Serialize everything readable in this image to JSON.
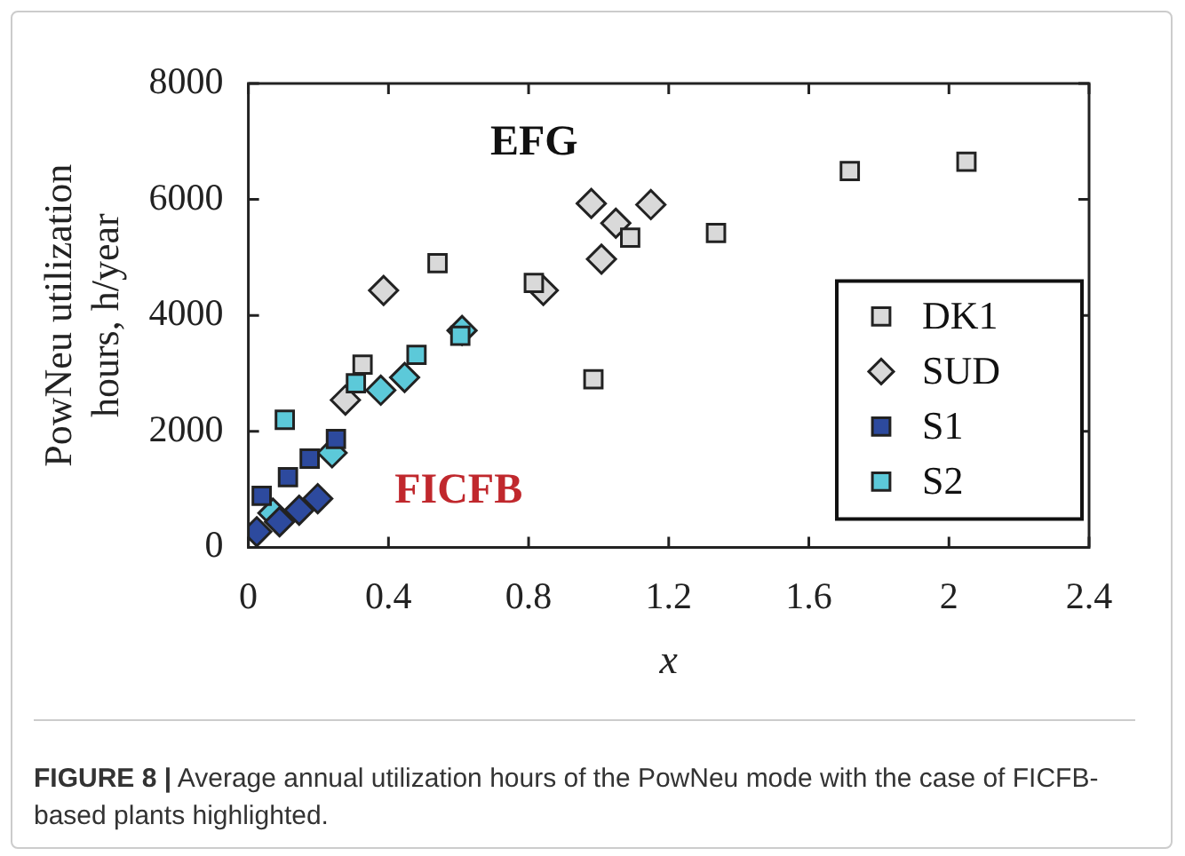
{
  "chart_data": {
    "type": "scatter",
    "xlabel": "x",
    "ylabel": "PowNeu utilization hours, h/year",
    "xlim": [
      0,
      2.4
    ],
    "xticks": [
      0,
      0.4,
      0.8,
      1.2,
      1.6,
      2,
      2.4
    ],
    "ylim": [
      0,
      8000
    ],
    "yticks": [
      0,
      2000,
      4000,
      6000,
      8000
    ],
    "grid": false,
    "legend": "bottom right",
    "series": [
      {
        "name": "DK1",
        "color": "#d9d9d9",
        "marker": "square",
        "x": [
          0.326,
          0.54,
          0.815,
          0.985,
          1.09,
          1.335,
          1.717,
          2.05
        ],
        "values": [
          3150,
          4900,
          4560,
          2900,
          5340,
          5420,
          6490,
          6650
        ]
      },
      {
        "name": "SUD",
        "color": "#d9d9d9",
        "marker": "diamond",
        "x": [
          0.277,
          0.386,
          0.842,
          0.979,
          1.008,
          1.049,
          1.149
        ],
        "values": [
          2540,
          4430,
          4430,
          5930,
          4970,
          5590,
          5910
        ]
      },
      {
        "name": "S1",
        "color": "#2d4a9e",
        "marker": "square",
        "x": [
          0.038,
          0.113,
          0.175,
          0.25
        ],
        "values": [
          890,
          1210,
          1530,
          1870
        ]
      },
      {
        "color": "#2d4a9e",
        "marker": "diamond",
        "x": [
          0.024,
          0.089,
          0.145,
          0.198
        ],
        "values": [
          270,
          440,
          640,
          840
        ]
      },
      {
        "name": "S2",
        "color": "#5cc9d9",
        "marker": "square",
        "x": [
          0.104,
          0.307,
          0.48,
          0.605
        ],
        "values": [
          2200,
          2830,
          3320,
          3650
        ]
      },
      {
        "color": "#5cc9d9",
        "marker": "diamond",
        "x": [
          0.07,
          0.239,
          0.378,
          0.446,
          0.61
        ],
        "values": [
          590,
          1630,
          2710,
          2930,
          3740
        ]
      }
    ],
    "annotations": [
      "EFG",
      "FICFB",
      "FIGURE 8 | Average annual utilization hours of the PowNeu mode with the case of FICFB-based plants highlighted."
    ]
  }
}
